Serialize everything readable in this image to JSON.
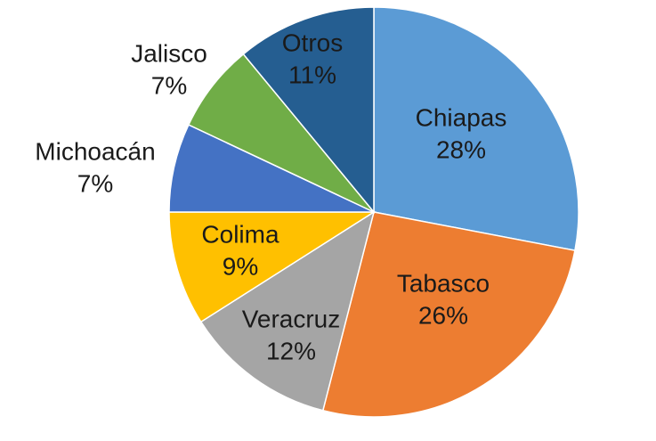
{
  "chart_data": {
    "type": "pie",
    "categories": [
      "Chiapas",
      "Tabasco",
      "Veracruz",
      "Colima",
      "Michoacán",
      "Jalisco",
      "Otros"
    ],
    "values": [
      28,
      26,
      12,
      9,
      7,
      7,
      11
    ],
    "value_labels": [
      "28%",
      "26%",
      "12%",
      "9%",
      "7%",
      "7%",
      "11%"
    ],
    "colors": [
      "#5b9bd5",
      "#ed7d31",
      "#a5a5a5",
      "#ffc000",
      "#4472c4",
      "#70ad47",
      "#255e91"
    ]
  }
}
